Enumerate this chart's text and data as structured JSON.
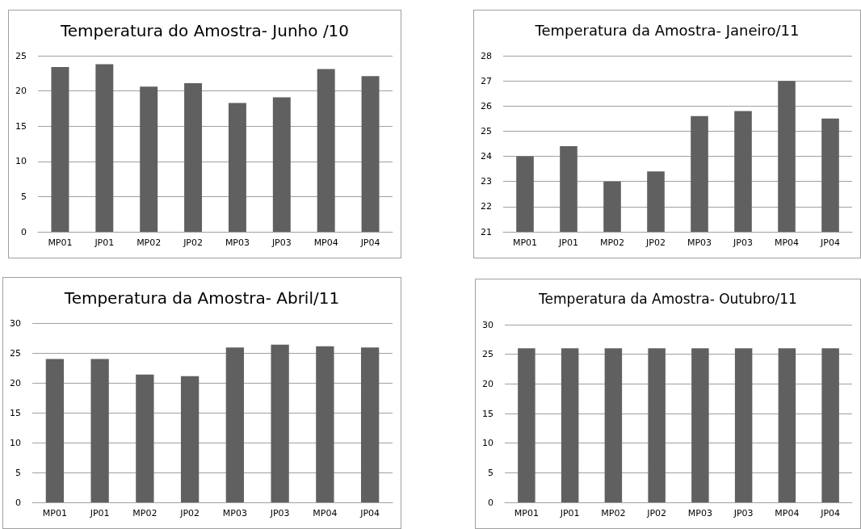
{
  "chart_data": [
    {
      "type": "bar",
      "title": "Temperatura do Amostra- Junho /10",
      "categories": [
        "MP01",
        "JP01",
        "MP02",
        "JP02",
        "MP03",
        "JP03",
        "MP04",
        "JP04"
      ],
      "values": [
        23.4,
        23.8,
        20.6,
        21.1,
        18.3,
        19.1,
        23.1,
        22.1
      ],
      "color": "#606060",
      "ylim": [
        0,
        25
      ],
      "yticks": [
        0,
        5,
        10,
        15,
        20,
        25
      ],
      "grid": "y"
    },
    {
      "type": "bar",
      "title": "Temperatura da Amostra- Janeiro/11",
      "categories": [
        "MP01",
        "JP01",
        "MP02",
        "JP02",
        "MP03",
        "JP03",
        "MP04",
        "JP04"
      ],
      "values": [
        24.0,
        24.4,
        23.0,
        23.4,
        25.6,
        25.8,
        27.0,
        25.5
      ],
      "color": "#606060",
      "ylim": [
        21,
        28
      ],
      "yticks": [
        21,
        22,
        23,
        24,
        25,
        26,
        27,
        28
      ],
      "grid": "y"
    },
    {
      "type": "bar",
      "title": "Temperatura da Amostra- Abril/11",
      "categories": [
        "MP01",
        "JP01",
        "MP02",
        "JP02",
        "MP03",
        "JP03",
        "MP04",
        "JP04"
      ],
      "values": [
        24.0,
        24.0,
        21.4,
        21.1,
        25.9,
        26.4,
        26.1,
        25.9
      ],
      "color": "#606060",
      "ylim": [
        0,
        30
      ],
      "yticks": [
        0,
        5,
        10,
        15,
        20,
        25,
        30
      ],
      "grid": "y"
    },
    {
      "type": "bar",
      "title": "Temperatura da Amostra- Outubro/11",
      "categories": [
        "MP01",
        "JP01",
        "MP02",
        "JP02",
        "MP03",
        "JP03",
        "MP04",
        "JP04"
      ],
      "values": [
        26,
        26,
        26,
        26,
        26,
        26,
        26,
        26
      ],
      "color": "#606060",
      "ylim": [
        0,
        30
      ],
      "yticks": [
        0,
        5,
        10,
        15,
        20,
        25,
        30
      ],
      "grid": "y"
    }
  ]
}
